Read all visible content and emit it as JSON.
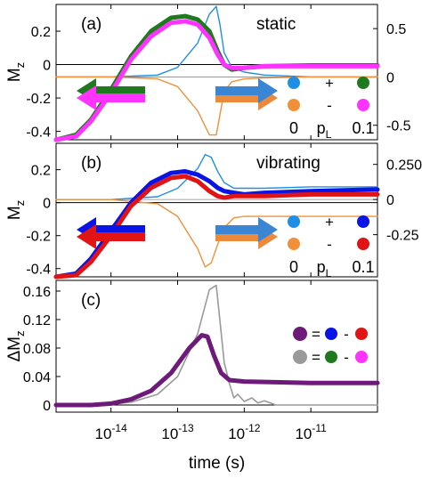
{
  "colors": {
    "blue_thin": "#1f8fe6",
    "orange_thin": "#f0913a",
    "green": "#1f7a1f",
    "magenta": "#ff33ff",
    "blue_thick": "#0a14e6",
    "red_thick": "#e01414",
    "purple": "#6e1a7a",
    "gray": "#9a9a9a",
    "arrow_blue": "#3a86d4",
    "arrow_orange": "#ec8a3c"
  },
  "x_axis": {
    "label": "time (s)",
    "scale": "log",
    "range": [
      1.5e-15,
      1e-10
    ],
    "ticks": [
      {
        "value": 1e-14,
        "base": "10",
        "exp": "-14"
      },
      {
        "value": 1e-13,
        "base": "10",
        "exp": "-13"
      },
      {
        "value": 1e-12,
        "base": "10",
        "exp": "-12"
      },
      {
        "value": 1e-11,
        "base": "10",
        "exp": "-11"
      }
    ]
  },
  "panels": [
    {
      "id": "a",
      "label": "(a)",
      "title": "static",
      "ylabel": "M",
      "ylabel_sub": "z",
      "ylim": [
        -0.45,
        0.36
      ],
      "yticks": [
        {
          "v": 0.2,
          "t": "0.2"
        },
        {
          "v": 0,
          "t": "0"
        },
        {
          "v": -0.2,
          "t": "-0.2"
        },
        {
          "v": -0.4,
          "t": "-0.4"
        }
      ],
      "y2lim": [
        -0.65,
        0.75
      ],
      "y2ticks": [
        {
          "v": 0.5,
          "t": "0.5"
        },
        {
          "v": 0,
          "t": "0"
        },
        {
          "v": -0.5,
          "t": "-0.5"
        }
      ],
      "legend": {
        "top_mid": "+",
        "bottom_left": "0",
        "bottom_mid": "p",
        "bottom_mid_sub": "L",
        "bottom_right": "0.1"
      }
    },
    {
      "id": "b",
      "label": "(b)",
      "title": "vibrating",
      "ylabel": "M",
      "ylabel_sub": "z",
      "ylim": [
        -0.45,
        0.36
      ],
      "yticks": [
        {
          "v": 0.2,
          "t": "0.2"
        },
        {
          "v": 0,
          "t": "0"
        },
        {
          "v": -0.2,
          "t": "-0.2"
        },
        {
          "v": -0.4,
          "t": "-0.4"
        }
      ],
      "y2lim": [
        -0.55,
        0.4
      ],
      "y2ticks": [
        {
          "v": 0.25,
          "t": "0.250"
        },
        {
          "v": 0,
          "t": "0"
        },
        {
          "v": -0.25,
          "t": "-0.25"
        }
      ],
      "legend": {
        "top_mid": "+",
        "bottom_left": "0",
        "bottom_mid": "p",
        "bottom_mid_sub": "L",
        "bottom_right": "0.1"
      }
    },
    {
      "id": "c",
      "label": "(c)",
      "ylabel": "ΔM",
      "ylabel_sub": "z",
      "ylim": [
        -0.01,
        0.175
      ],
      "yticks": [
        {
          "v": 0.16,
          "t": "0.16"
        },
        {
          "v": 0.12,
          "t": "0.12"
        },
        {
          "v": 0.08,
          "t": "0.08"
        },
        {
          "v": 0.04,
          "t": "0.04"
        },
        {
          "v": 0,
          "t": "0"
        }
      ],
      "legend": {
        "eq": "=",
        "minus": "-"
      }
    }
  ],
  "chart_data": [
    {
      "type": "line",
      "panel": "a",
      "title": "static",
      "xscale": "log",
      "series": [
        {
          "color": "green",
          "axis": "left",
          "x": [
            1.5e-15,
            3e-15,
            5e-15,
            1e-14,
            2e-14,
            4e-14,
            8e-14,
            1.3e-13,
            2e-13,
            3e-13,
            4e-13,
            5e-13,
            6.5e-13,
            1e-12,
            2e-12,
            1e-11,
            1e-10
          ],
          "y": [
            -0.45,
            -0.42,
            -0.33,
            -0.15,
            0.05,
            0.2,
            0.28,
            0.29,
            0.27,
            0.2,
            0.08,
            0.0,
            -0.03,
            -0.02,
            -0.01,
            -0.005,
            -0.005
          ]
        },
        {
          "color": "magenta",
          "axis": "left",
          "x": [
            1.5e-15,
            3e-15,
            5e-15,
            1e-14,
            2e-14,
            4e-14,
            8e-14,
            1.3e-13,
            2e-13,
            3e-13,
            4e-13,
            5e-13,
            6.5e-13,
            1e-12,
            2e-12,
            1e-11,
            1e-10
          ],
          "y": [
            -0.45,
            -0.43,
            -0.34,
            -0.17,
            0.03,
            0.17,
            0.25,
            0.26,
            0.24,
            0.16,
            0.06,
            0.0,
            -0.02,
            -0.02,
            -0.01,
            -0.01,
            -0.01
          ]
        },
        {
          "color": "blue_thin",
          "axis": "right",
          "x": [
            1.5e-15,
            1e-14,
            5e-14,
            1e-13,
            2e-13,
            3e-13,
            3.8e-13,
            4.3e-13,
            5e-13,
            6.5e-13,
            1e-12,
            2e-12,
            1e-11,
            1e-10
          ],
          "y": [
            0.0,
            0.0,
            0.02,
            0.1,
            0.35,
            0.65,
            0.73,
            0.55,
            0.25,
            0.1,
            0.05,
            0.02,
            0.0,
            0.0
          ]
        },
        {
          "color": "orange_thin",
          "axis": "right",
          "x": [
            1.5e-15,
            1e-14,
            5e-14,
            1e-13,
            2e-13,
            3e-13,
            3.8e-13,
            4.3e-13,
            5e-13,
            6.5e-13,
            1e-12,
            2e-12,
            1e-11,
            1e-10
          ],
          "y": [
            0.0,
            0.0,
            -0.02,
            -0.1,
            -0.35,
            -0.6,
            -0.6,
            -0.4,
            -0.15,
            -0.05,
            -0.02,
            -0.01,
            0.0,
            0.0
          ]
        }
      ]
    },
    {
      "type": "line",
      "panel": "b",
      "title": "vibrating",
      "xscale": "log",
      "series": [
        {
          "color": "blue_thick",
          "axis": "left",
          "x": [
            1.5e-15,
            3e-15,
            5e-15,
            1e-14,
            2e-14,
            4e-14,
            8e-14,
            1.3e-13,
            2e-13,
            3e-13,
            4e-13,
            5e-13,
            7e-13,
            1e-12,
            2e-12,
            1e-11,
            1e-10
          ],
          "y": [
            -0.45,
            -0.43,
            -0.34,
            -0.17,
            0.0,
            0.12,
            0.18,
            0.19,
            0.17,
            0.13,
            0.09,
            0.07,
            0.06,
            0.05,
            0.06,
            0.07,
            0.08
          ]
        },
        {
          "color": "red_thick",
          "axis": "left",
          "x": [
            1.5e-15,
            3e-15,
            5e-15,
            1e-14,
            2e-14,
            4e-14,
            8e-14,
            1.3e-13,
            2e-13,
            3e-13,
            4e-13,
            5e-13,
            7e-13,
            1e-12,
            2e-12,
            1e-11,
            1e-10
          ],
          "y": [
            -0.45,
            -0.44,
            -0.36,
            -0.2,
            -0.02,
            0.09,
            0.15,
            0.16,
            0.13,
            0.07,
            0.04,
            0.03,
            0.04,
            0.04,
            0.04,
            0.05,
            0.05
          ]
        },
        {
          "color": "blue_thin",
          "axis": "right",
          "x": [
            1.5e-15,
            1e-14,
            5e-14,
            1e-13,
            2e-13,
            2.6e-13,
            3.2e-13,
            4e-13,
            5e-13,
            7e-13,
            1e-12,
            2e-12,
            1e-11,
            1e-10
          ],
          "y": [
            0.0,
            0.0,
            0.02,
            0.08,
            0.22,
            0.32,
            0.3,
            0.2,
            0.12,
            0.08,
            0.08,
            0.08,
            0.09,
            0.09
          ]
        },
        {
          "color": "orange_thin",
          "axis": "right",
          "x": [
            1.5e-15,
            1e-14,
            5e-14,
            1e-13,
            2e-13,
            2.6e-13,
            3.2e-13,
            4e-13,
            5e-13,
            7e-13,
            1e-12,
            2e-12,
            1e-11,
            1e-10
          ],
          "y": [
            0.0,
            0.0,
            -0.03,
            -0.12,
            -0.35,
            -0.48,
            -0.45,
            -0.32,
            -0.2,
            -0.13,
            -0.12,
            -0.12,
            -0.12,
            -0.12
          ]
        }
      ]
    },
    {
      "type": "line",
      "panel": "c",
      "xscale": "log",
      "series": [
        {
          "color": "gray",
          "axis": "left",
          "x": [
            1.5e-15,
            5e-15,
            1e-14,
            2e-14,
            5e-14,
            1e-13,
            2e-13,
            3e-13,
            3.8e-13,
            4.3e-13,
            5e-13,
            6e-13,
            7e-13,
            8e-13,
            1e-12,
            1.3e-12,
            1.6e-12,
            2e-12,
            3e-12,
            1e-11,
            1e-10
          ],
          "y": [
            0.0,
            0.0,
            0.001,
            0.004,
            0.015,
            0.04,
            0.1,
            0.162,
            0.168,
            0.12,
            0.06,
            0.03,
            0.01,
            0.015,
            0.005,
            0.01,
            0.003,
            0.006,
            0.0,
            0.0,
            0.0
          ]
        },
        {
          "color": "purple",
          "axis": "left",
          "x": [
            1.5e-15,
            5e-15,
            1e-14,
            2e-14,
            4e-14,
            8e-14,
            1.5e-13,
            2.3e-13,
            2.8e-13,
            3.5e-13,
            4.5e-13,
            6e-13,
            1e-12,
            3e-12,
            1e-11,
            1e-10
          ],
          "y": [
            0.0,
            0.0,
            0.002,
            0.008,
            0.02,
            0.045,
            0.08,
            0.098,
            0.096,
            0.07,
            0.045,
            0.035,
            0.033,
            0.032,
            0.031,
            0.031
          ]
        }
      ]
    }
  ]
}
